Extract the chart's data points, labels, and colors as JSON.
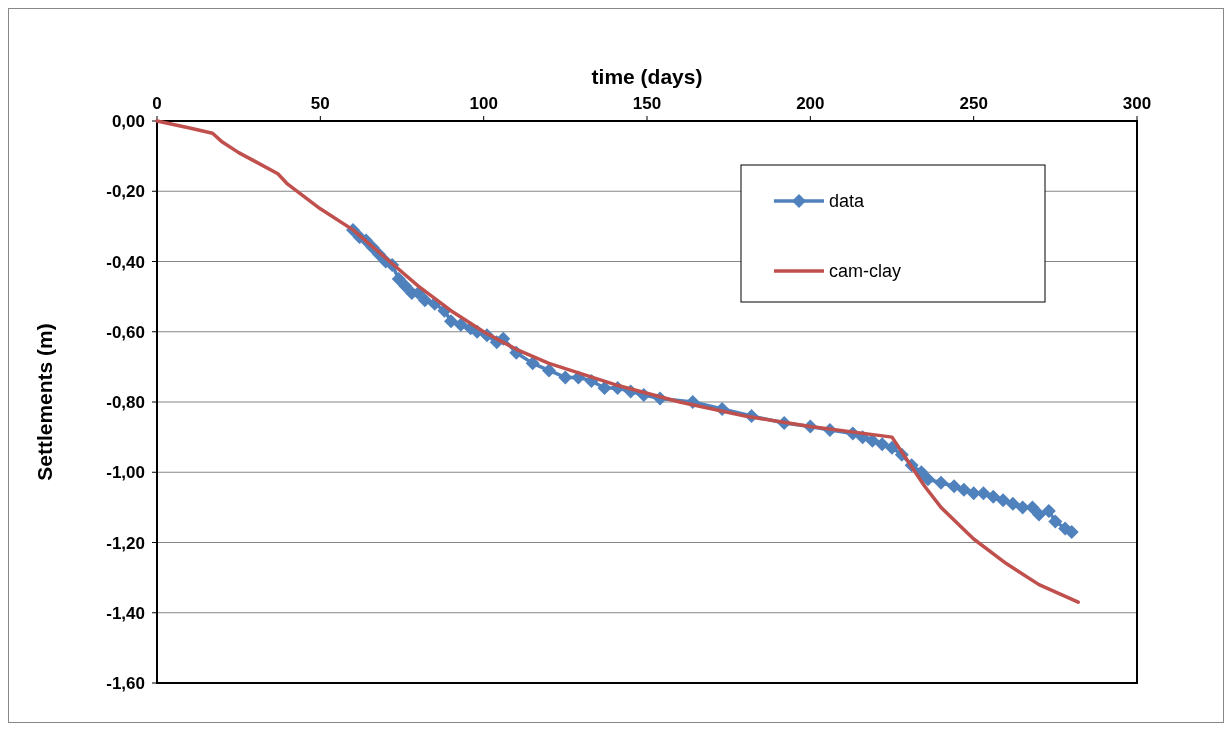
{
  "chart_data": {
    "type": "line",
    "xlabel": "time (days)",
    "ylabel": "Settlements (m)",
    "xlim": [
      0,
      300
    ],
    "xticks": [
      0,
      50,
      100,
      150,
      200,
      250,
      300
    ],
    "ylim": [
      -1.6,
      0
    ],
    "yticks": [
      {
        "value": 0,
        "label": "0,00"
      },
      {
        "value": -0.2,
        "label": "-0,20"
      },
      {
        "value": -0.4,
        "label": "-0,40"
      },
      {
        "value": -0.6,
        "label": "-0,60"
      },
      {
        "value": -0.8,
        "label": "-0,80"
      },
      {
        "value": -1,
        "label": "-1,00"
      },
      {
        "value": -1.2,
        "label": "-1,20"
      },
      {
        "value": -1.4,
        "label": "-1,40"
      },
      {
        "value": -1.6,
        "label": "-1,60"
      }
    ],
    "grid": "y",
    "legend": "top right",
    "line_style": "solid",
    "series": [
      {
        "name": "data",
        "color": "#4f81bd",
        "marker": "diamond",
        "x": [
          60,
          62,
          64,
          66,
          68,
          70,
          72,
          74,
          76,
          78,
          80,
          82,
          85,
          88,
          90,
          93,
          96,
          98,
          101,
          104,
          106,
          110,
          115,
          120,
          125,
          129,
          133,
          137,
          141,
          145,
          149,
          154,
          164,
          173,
          182,
          192,
          200,
          206,
          213,
          216,
          219,
          222,
          225,
          228,
          231,
          234,
          236,
          240,
          244,
          247,
          250,
          253,
          256,
          259,
          262,
          265,
          268,
          270,
          273,
          275,
          278,
          280
        ],
        "values": [
          -0.31,
          -0.33,
          -0.34,
          -0.36,
          -0.38,
          -0.4,
          -0.41,
          -0.45,
          -0.47,
          -0.49,
          -0.49,
          -0.51,
          -0.52,
          -0.54,
          -0.57,
          -0.58,
          -0.59,
          -0.6,
          -0.61,
          -0.63,
          -0.62,
          -0.66,
          -0.69,
          -0.71,
          -0.73,
          -0.73,
          -0.74,
          -0.76,
          -0.76,
          -0.77,
          -0.78,
          -0.79,
          -0.8,
          -0.82,
          -0.84,
          -0.86,
          -0.87,
          -0.88,
          -0.89,
          -0.9,
          -0.91,
          -0.92,
          -0.93,
          -0.95,
          -0.98,
          -1,
          -1.02,
          -1.03,
          -1.04,
          -1.05,
          -1.06,
          -1.06,
          -1.07,
          -1.08,
          -1.09,
          -1.1,
          -1.1,
          -1.12,
          -1.11,
          -1.14,
          -1.16,
          -1.17
        ]
      },
      {
        "name": "cam-clay",
        "color": "#c0504d",
        "marker": "none",
        "x": [
          0,
          10,
          17,
          20,
          25,
          30,
          37,
          40,
          50,
          60,
          70,
          80,
          90,
          100,
          110,
          120,
          140,
          160,
          180,
          200,
          225,
          230,
          235,
          240,
          250,
          260,
          270,
          282
        ],
        "values": [
          0,
          -0.02,
          -0.035,
          -0.06,
          -0.09,
          -0.115,
          -0.15,
          -0.18,
          -0.25,
          -0.31,
          -0.39,
          -0.47,
          -0.54,
          -0.6,
          -0.65,
          -0.69,
          -0.75,
          -0.8,
          -0.84,
          -0.87,
          -0.9,
          -0.97,
          -1.04,
          -1.1,
          -1.19,
          -1.26,
          -1.32,
          -1.37
        ]
      }
    ]
  }
}
